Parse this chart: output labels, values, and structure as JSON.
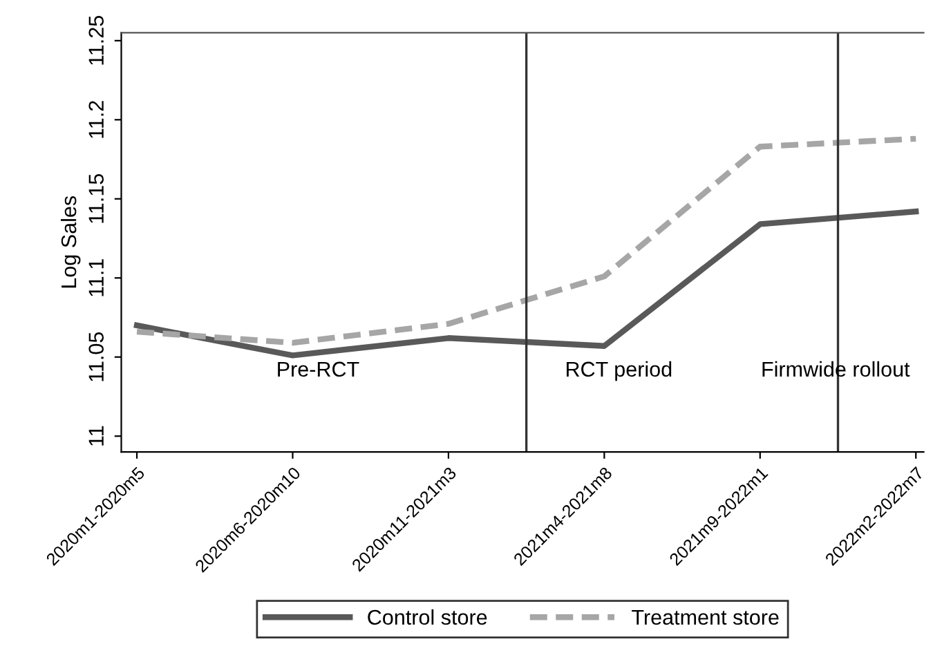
{
  "chart_data": {
    "type": "line",
    "ylabel": "Log Sales",
    "categories": [
      "2020m1-2020m5",
      "2020m6-2020m10",
      "2020m11-2021m3",
      "2021m4-2021m8",
      "2021m9-2022m1",
      "2022m2-2022m7"
    ],
    "series": [
      {
        "name": "Control store",
        "color": "#595959",
        "line_style": "solid",
        "values": [
          11.07,
          11.051,
          11.062,
          11.057,
          11.134,
          11.142
        ]
      },
      {
        "name": "Treatment store",
        "color": "#a6a6a6",
        "line_style": "dashed",
        "values": [
          11.066,
          11.059,
          11.071,
          11.101,
          11.183,
          11.188
        ]
      }
    ],
    "ylim": [
      10.99,
      11.255
    ],
    "yticks": [
      11,
      11.05,
      11.1,
      11.15,
      11.2,
      11.25
    ],
    "annotations": [
      "Pre-RCT",
      "RCT period",
      "Firmwide rollout"
    ],
    "grid": false,
    "legend": "bottom",
    "marker": "none"
  }
}
